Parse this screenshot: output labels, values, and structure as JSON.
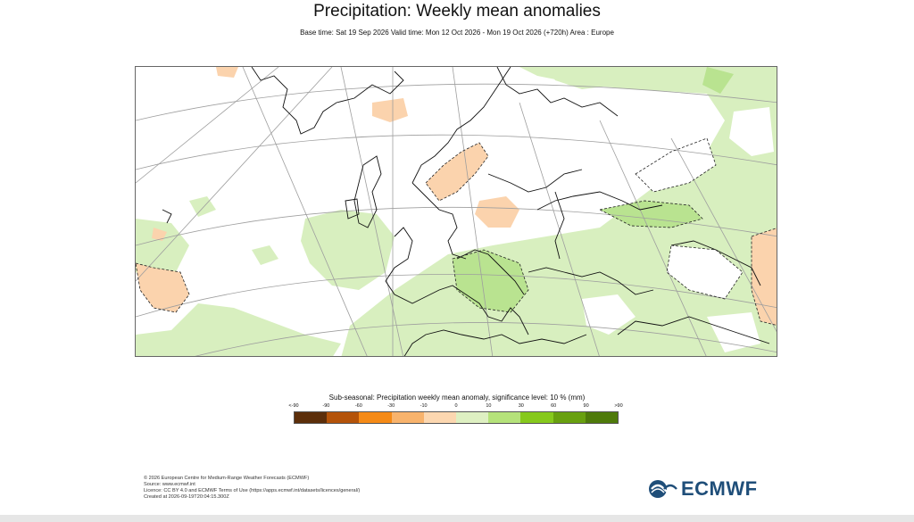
{
  "header": {
    "title": "Precipitation: Weekly mean anomalies",
    "subtitle": "Base time: Sat 19 Sep 2026 Valid time: Mon 12 Oct 2026 - Mon 19 Oct 2026 (+720h) Area : Europe"
  },
  "legend": {
    "title": "Sub-seasonal: Precipitation weekly mean anomaly, significance level: 10 % (mm)",
    "ticks": [
      "<-90",
      "-90",
      "-60",
      "-30",
      "-10",
      "0",
      "10",
      "30",
      "60",
      "90",
      ">90"
    ],
    "colors": [
      "#5c2e0a",
      "#b45309",
      "#f58a16",
      "#f8b36c",
      "#fcd7b0",
      "#def0c2",
      "#b5e27a",
      "#86c91c",
      "#68a00f",
      "#4e7a0a"
    ]
  },
  "map_colors": {
    "ocean": "#ffffff",
    "light_wet": "#d8efbf",
    "medium_wet": "#b9e390",
    "light_dry": "#fbd3ad",
    "coast": "#111111",
    "graticule": "#9e9e9e"
  },
  "footer": {
    "lines": [
      "© 2026 European Centre for Medium-Range Weather Forecasts (ECMWF)",
      "Source: www.ecmwf.int",
      "Licence: CC BY 4.0 and ECMWF Terms of Use (https://apps.ecmwf.int/datasets/licences/general/)",
      "Created at 2026-09-19T20:04:15.300Z"
    ]
  },
  "logo": {
    "text": "ECMWF",
    "color": "#1f4e79",
    "icon": "ecmwf-logo-icon"
  }
}
